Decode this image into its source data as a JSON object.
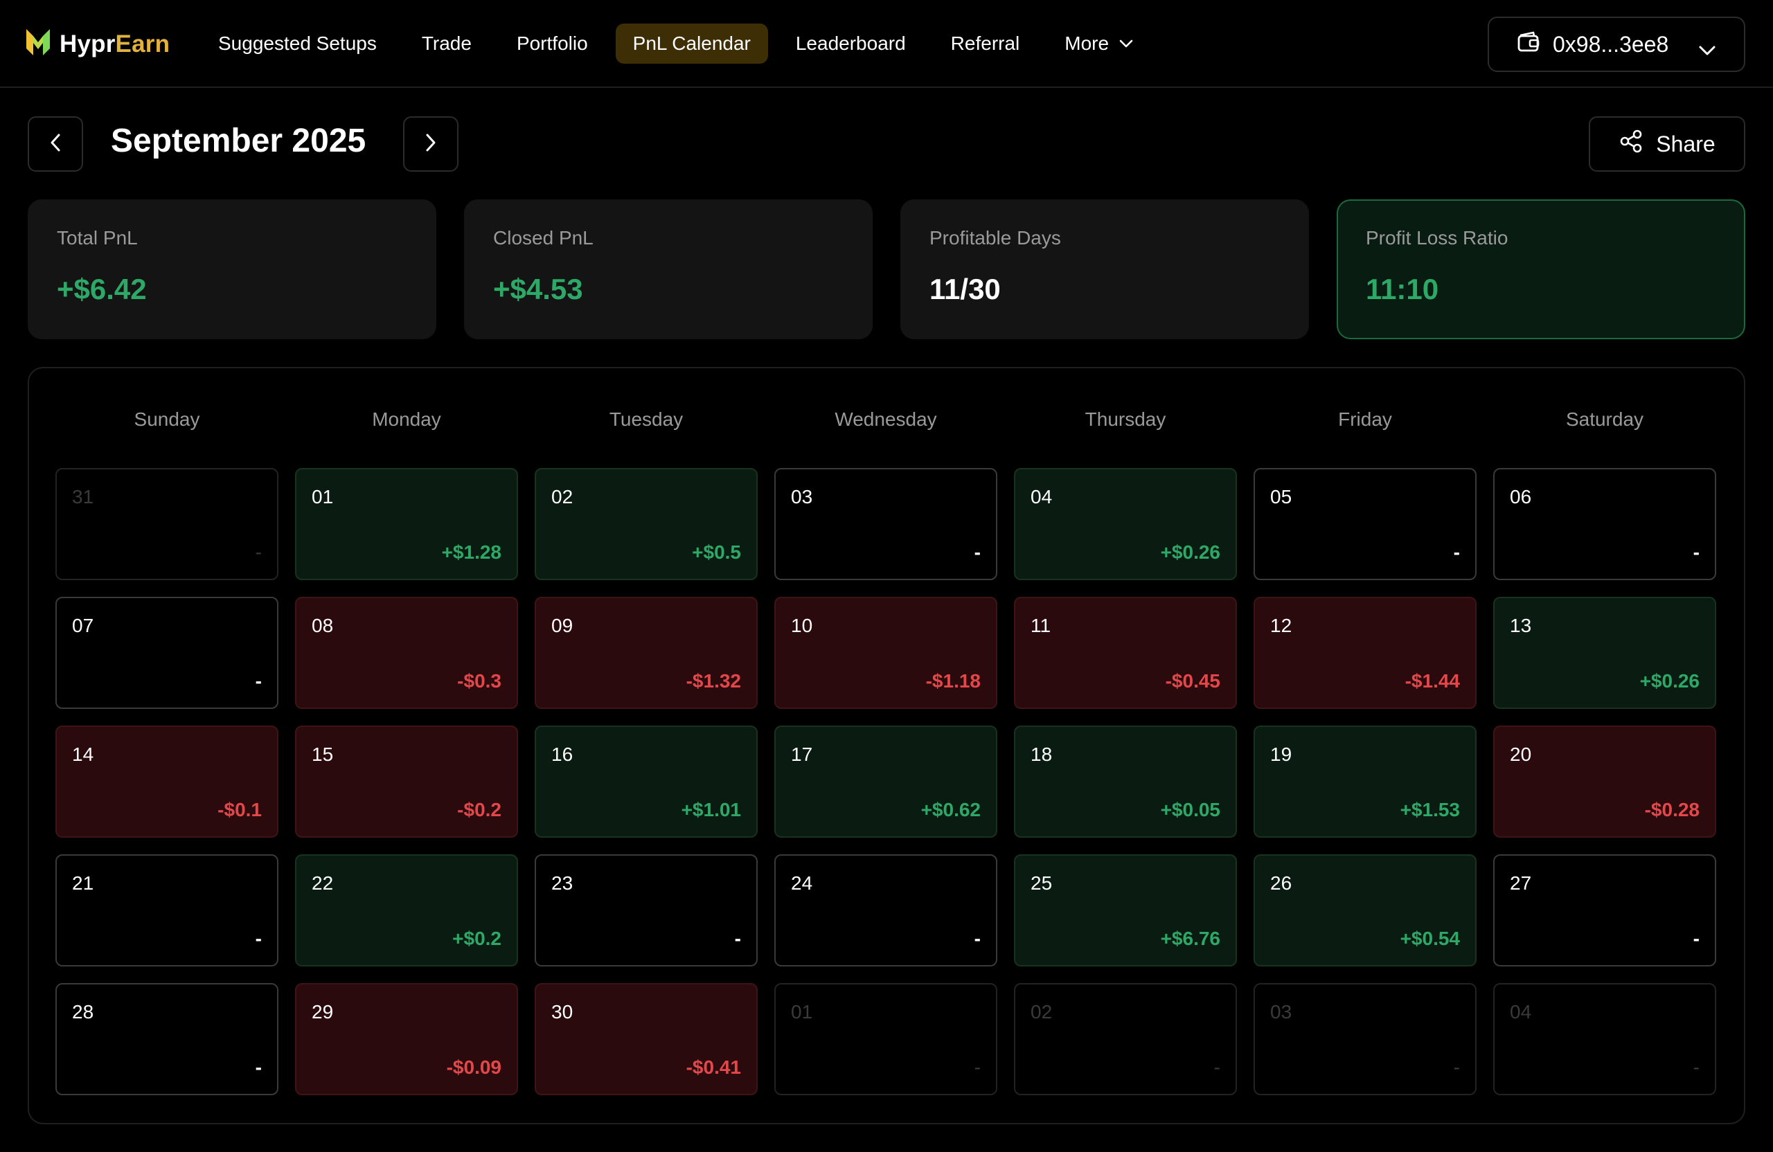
{
  "brand": {
    "name_part1": "Hypr",
    "name_part2": "Earn",
    "accent": "#e3b23c",
    "logo_icon": "hyprearn-logo-icon"
  },
  "nav": {
    "items": [
      {
        "label": "Suggested Setups",
        "active": false
      },
      {
        "label": "Trade",
        "active": false
      },
      {
        "label": "Portfolio",
        "active": false
      },
      {
        "label": "PnL Calendar",
        "active": true
      },
      {
        "label": "Leaderboard",
        "active": false
      },
      {
        "label": "Referral",
        "active": false
      },
      {
        "label": "More",
        "active": false,
        "dropdown": true
      }
    ],
    "wallet": {
      "address": "0x98...3ee8",
      "icon": "wallet-icon"
    }
  },
  "month": {
    "title": "September 2025",
    "prev_icon": "chevron-left-icon",
    "next_icon": "chevron-right-icon"
  },
  "share": {
    "label": "Share",
    "icon": "share-icon"
  },
  "stats": [
    {
      "label": "Total PnL",
      "value": "+$6.42",
      "tone": "green"
    },
    {
      "label": "Closed PnL",
      "value": "+$4.53",
      "tone": "green"
    },
    {
      "label": "Profitable Days",
      "value": "11/30",
      "tone": "white"
    },
    {
      "label": "Profit Loss Ratio",
      "value": "11:10",
      "tone": "green",
      "highlight": true
    }
  ],
  "colors": {
    "positive": "#2ea866",
    "negative": "#e3474a"
  },
  "calendar": {
    "weekdays": [
      "Sunday",
      "Monday",
      "Tuesday",
      "Wednesday",
      "Thursday",
      "Friday",
      "Saturday"
    ],
    "days": [
      {
        "day": "31",
        "pnl": "-",
        "state": "other"
      },
      {
        "day": "01",
        "pnl": "+$1.28",
        "state": "pos"
      },
      {
        "day": "02",
        "pnl": "+$0.5",
        "state": "pos"
      },
      {
        "day": "03",
        "pnl": "-",
        "state": "none"
      },
      {
        "day": "04",
        "pnl": "+$0.26",
        "state": "pos"
      },
      {
        "day": "05",
        "pnl": "-",
        "state": "none"
      },
      {
        "day": "06",
        "pnl": "-",
        "state": "none"
      },
      {
        "day": "07",
        "pnl": "-",
        "state": "none"
      },
      {
        "day": "08",
        "pnl": "-$0.3",
        "state": "neg"
      },
      {
        "day": "09",
        "pnl": "-$1.32",
        "state": "neg"
      },
      {
        "day": "10",
        "pnl": "-$1.18",
        "state": "neg"
      },
      {
        "day": "11",
        "pnl": "-$0.45",
        "state": "neg"
      },
      {
        "day": "12",
        "pnl": "-$1.44",
        "state": "neg"
      },
      {
        "day": "13",
        "pnl": "+$0.26",
        "state": "pos"
      },
      {
        "day": "14",
        "pnl": "-$0.1",
        "state": "neg"
      },
      {
        "day": "15",
        "pnl": "-$0.2",
        "state": "neg"
      },
      {
        "day": "16",
        "pnl": "+$1.01",
        "state": "pos"
      },
      {
        "day": "17",
        "pnl": "+$0.62",
        "state": "pos"
      },
      {
        "day": "18",
        "pnl": "+$0.05",
        "state": "pos"
      },
      {
        "day": "19",
        "pnl": "+$1.53",
        "state": "pos"
      },
      {
        "day": "20",
        "pnl": "-$0.28",
        "state": "neg"
      },
      {
        "day": "21",
        "pnl": "-",
        "state": "none"
      },
      {
        "day": "22",
        "pnl": "+$0.2",
        "state": "pos"
      },
      {
        "day": "23",
        "pnl": "-",
        "state": "none"
      },
      {
        "day": "24",
        "pnl": "-",
        "state": "none"
      },
      {
        "day": "25",
        "pnl": "+$6.76",
        "state": "pos"
      },
      {
        "day": "26",
        "pnl": "+$0.54",
        "state": "pos"
      },
      {
        "day": "27",
        "pnl": "-",
        "state": "none"
      },
      {
        "day": "28",
        "pnl": "-",
        "state": "none"
      },
      {
        "day": "29",
        "pnl": "-$0.09",
        "state": "neg"
      },
      {
        "day": "30",
        "pnl": "-$0.41",
        "state": "neg"
      },
      {
        "day": "01",
        "pnl": "-",
        "state": "other"
      },
      {
        "day": "02",
        "pnl": "-",
        "state": "other"
      },
      {
        "day": "03",
        "pnl": "-",
        "state": "other"
      },
      {
        "day": "04",
        "pnl": "-",
        "state": "other"
      }
    ]
  }
}
